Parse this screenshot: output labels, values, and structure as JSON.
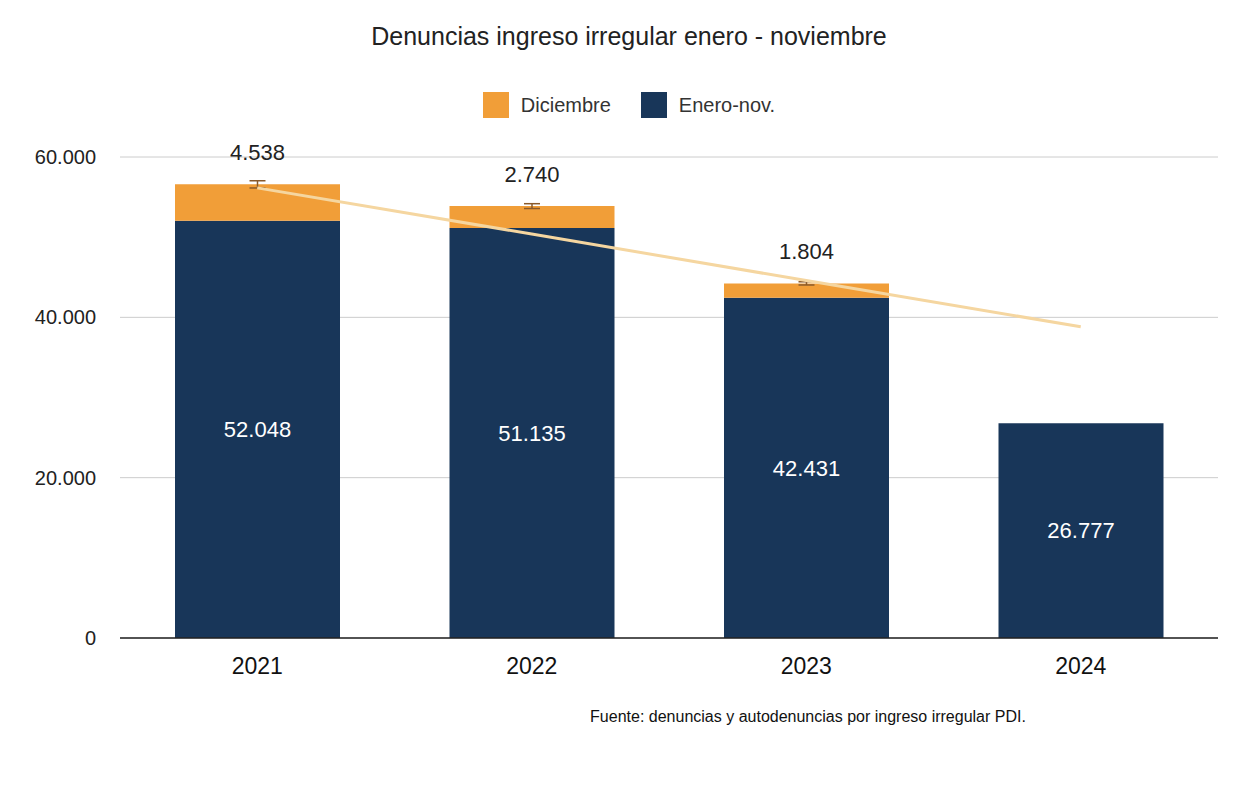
{
  "chart_data": {
    "type": "bar",
    "title": "Denuncias ingreso irregular enero - noviembre",
    "source": "Fuente: denuncias y autodenuncias por ingreso irregular PDI.",
    "categories": [
      "2021",
      "2022",
      "2023",
      "2024"
    ],
    "stacked": true,
    "data_labels": true,
    "grid": true,
    "legend": "top",
    "series": [
      {
        "name": "Enero-nov.",
        "color": "#183659",
        "values": [
          52048,
          51135,
          42431,
          26777
        ],
        "value_labels": [
          "52.048",
          "51.135",
          "42.431",
          "26.777"
        ]
      },
      {
        "name": "Diciembre",
        "color": "#f19e38",
        "values": [
          4538,
          2740,
          1804,
          null
        ],
        "value_labels": [
          "4.538",
          "2.740",
          "1.804",
          null
        ],
        "errors": [
          450,
          300,
          200,
          null
        ]
      }
    ],
    "trend": {
      "type": "line",
      "color": "#f5d6a0",
      "values": [
        56150,
        50390,
        44590,
        38820
      ]
    },
    "ylim": [
      0,
      60000
    ],
    "yticks": [
      0,
      {
        "value": 20000,
        "label": "20.000"
      },
      {
        "value": 40000,
        "label": "40.000"
      },
      {
        "value": 60000,
        "label": "60.000"
      }
    ]
  }
}
